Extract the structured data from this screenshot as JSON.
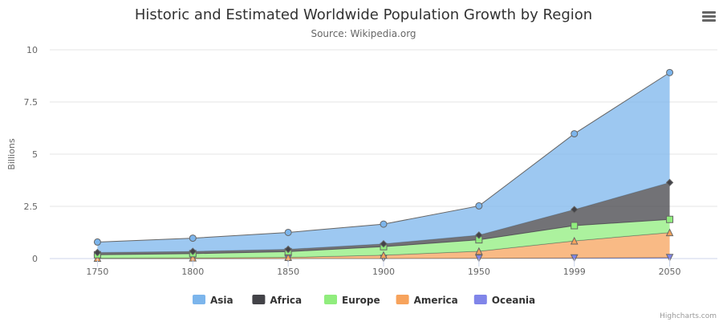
{
  "chart_data": {
    "type": "area",
    "stacking": "normal",
    "title": "Historic and Estimated Worldwide Population Growth by Region",
    "subtitle": "Source: Wikipedia.org",
    "xlabel": "",
    "ylabel": "Billions",
    "categories": [
      "1750",
      "1800",
      "1850",
      "1900",
      "1950",
      "1999",
      "2050"
    ],
    "ylim": [
      0,
      10
    ],
    "yticks": [
      "0",
      "2.5",
      "5",
      "7.5",
      "10"
    ],
    "ytick_values": [
      0,
      2.5,
      5,
      7.5,
      10
    ],
    "grid": true,
    "legend_position": "bottom-center",
    "series": [
      {
        "name": "Asia",
        "values": [
          0.502,
          0.635,
          0.809,
          0.947,
          1.402,
          3.634,
          5.268
        ],
        "color": "#7cb5ec",
        "marker": "circle"
      },
      {
        "name": "Africa",
        "values": [
          0.106,
          0.107,
          0.111,
          0.133,
          0.221,
          0.767,
          1.766
        ],
        "color": "#434348",
        "marker": "diamond"
      },
      {
        "name": "Europe",
        "values": [
          0.163,
          0.203,
          0.276,
          0.408,
          0.547,
          0.729,
          0.628
        ],
        "color": "#90ed7d",
        "marker": "square"
      },
      {
        "name": "America",
        "values": [
          0.018,
          0.031,
          0.054,
          0.156,
          0.339,
          0.818,
          1.201
        ],
        "color": "#f7a35c",
        "marker": "triangle"
      },
      {
        "name": "Oceania",
        "values": [
          0.002,
          0.002,
          0.002,
          0.006,
          0.013,
          0.03,
          0.046
        ],
        "color": "#8085e9",
        "marker": "triangle-down"
      }
    ]
  },
  "credits": "Highcharts.com",
  "menu_icon": "hamburger-menu-icon"
}
